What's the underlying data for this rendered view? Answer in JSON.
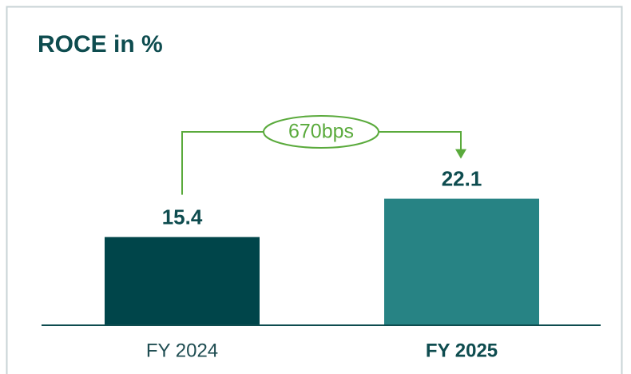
{
  "chart_data": {
    "type": "bar",
    "title": "ROCE in %",
    "categories": [
      "FY 2024",
      "FY 2025"
    ],
    "series": [
      {
        "values": [
          15.4,
          22.1
        ],
        "colors": [
          "#00454a",
          "#278384"
        ]
      }
    ],
    "ylim": [
      0,
      30
    ],
    "annotation": "670bps",
    "annotation_color": "#5aaa3c"
  }
}
